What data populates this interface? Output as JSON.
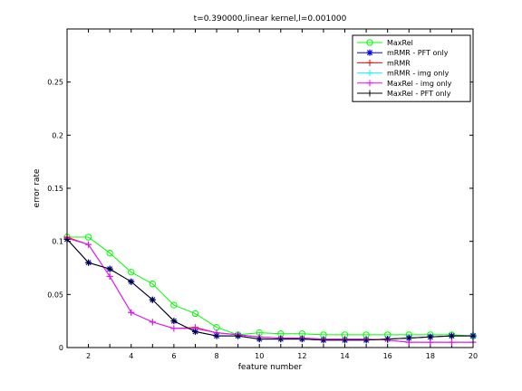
{
  "chart_data": {
    "type": "line",
    "title": "t=0.390000,linear kernel,l=0.001000",
    "xlabel": "feature number",
    "ylabel": "error rate",
    "xlim": [
      1,
      20
    ],
    "ylim": [
      0,
      0.3
    ],
    "xticks": [
      2,
      4,
      6,
      8,
      10,
      12,
      14,
      16,
      18,
      20
    ],
    "xtick_labels": [
      "2",
      "4",
      "6",
      "8",
      "10",
      "12",
      "14",
      "16",
      "18",
      "20"
    ],
    "yticks": [
      0,
      0.05,
      0.1,
      0.15,
      0.2,
      0.25
    ],
    "ytick_labels": [
      "0",
      "0.05",
      "0.1",
      "0.15",
      "0.2",
      "0.25"
    ],
    "legend_position": "top-right",
    "x": [
      1,
      2,
      3,
      4,
      5,
      6,
      7,
      8,
      9,
      10,
      11,
      12,
      13,
      14,
      15,
      16,
      17,
      18,
      19,
      20
    ],
    "series": [
      {
        "name": "MaxRel",
        "color": "#00ff00",
        "marker": "o",
        "values": [
          0.104,
          0.104,
          0.089,
          0.071,
          0.06,
          0.04,
          0.032,
          0.019,
          0.012,
          0.014,
          0.013,
          0.013,
          0.012,
          0.012,
          0.012,
          0.012,
          0.012,
          0.012,
          0.012,
          0.011
        ]
      },
      {
        "name": "mRMR - PFT only",
        "color": "#0000ff",
        "marker": "*",
        "values": [
          0.102,
          0.08,
          0.074,
          0.062,
          0.045,
          0.025,
          0.015,
          0.011,
          0.011,
          0.008,
          0.008,
          0.008,
          0.007,
          0.007,
          0.007,
          0.008,
          0.009,
          0.01,
          0.011,
          0.011
        ]
      },
      {
        "name": "mRMR",
        "color": "#ff0000",
        "marker": "+",
        "values": [
          0.104,
          0.097,
          0.067,
          0.033,
          0.024,
          0.018,
          0.019,
          0.014,
          0.012,
          0.01,
          0.009,
          0.009,
          0.008,
          0.008,
          0.008,
          0.007,
          0.005,
          0.005,
          0.005,
          0.005
        ]
      },
      {
        "name": "mRMR - img only",
        "color": "#00ffff",
        "marker": "+",
        "values": [
          0.103,
          0.097,
          0.067,
          0.033,
          0.024,
          0.018,
          0.018,
          0.014,
          0.012,
          0.01,
          0.009,
          0.009,
          0.008,
          0.008,
          0.008,
          0.007,
          0.005,
          0.005,
          0.005,
          0.005
        ]
      },
      {
        "name": "MaxRel - img only",
        "color": "#ff00ff",
        "marker": "+",
        "values": [
          0.103,
          0.097,
          0.067,
          0.033,
          0.024,
          0.018,
          0.018,
          0.014,
          0.012,
          0.01,
          0.009,
          0.009,
          0.008,
          0.008,
          0.008,
          0.007,
          0.005,
          0.005,
          0.005,
          0.005
        ]
      },
      {
        "name": "MaxRel - PFT only",
        "color": "#000000",
        "marker": "+",
        "values": [
          0.102,
          0.08,
          0.074,
          0.062,
          0.045,
          0.025,
          0.015,
          0.011,
          0.011,
          0.008,
          0.008,
          0.008,
          0.007,
          0.007,
          0.007,
          0.008,
          0.009,
          0.01,
          0.011,
          0.011
        ]
      }
    ]
  }
}
